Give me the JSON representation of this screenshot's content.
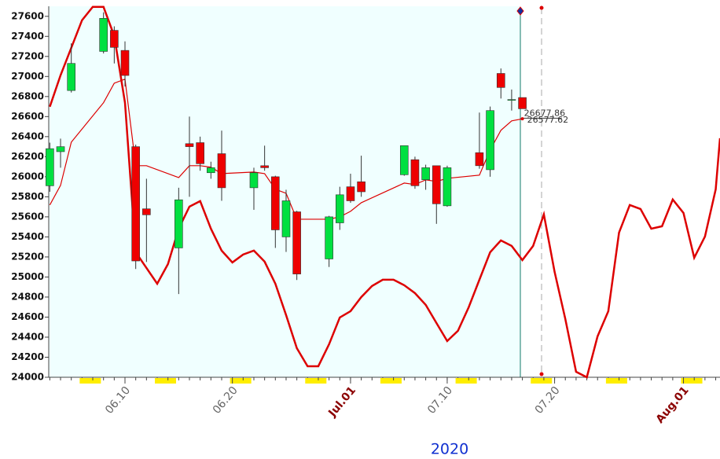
{
  "chart_data": {
    "type": "candlestick",
    "xlabel": "2020",
    "xlim": [
      2.9,
      65.4
    ],
    "ylim": [
      24000,
      27700
    ],
    "yticks": [
      24000,
      24200,
      24400,
      24600,
      24800,
      25000,
      25200,
      25400,
      25600,
      25800,
      26000,
      26200,
      26400,
      26600,
      26800,
      27000,
      27200,
      27400,
      27600
    ],
    "xticks": [
      {
        "value": 10,
        "label": "06.10"
      },
      {
        "value": 20,
        "label": "06.20"
      },
      {
        "value": 31,
        "label": "Jul.01"
      },
      {
        "value": 40,
        "label": "07.10"
      },
      {
        "value": 50,
        "label": "07.20"
      },
      {
        "value": 62,
        "label": "Aug.01"
      }
    ],
    "xtick_colors": [
      "#666666",
      "#666666",
      "#8b0000",
      "#666666",
      "#666666",
      "#8b0000"
    ],
    "up_color": "#00e040",
    "down_color": "#ee0000",
    "candles": {
      "x": [
        3,
        4,
        5,
        8,
        9,
        10,
        11,
        12,
        15,
        16,
        17,
        18,
        19,
        22,
        23,
        24,
        25,
        26,
        29,
        30,
        31,
        32,
        36,
        37,
        38,
        39,
        40,
        43,
        44,
        45,
        46,
        47
      ],
      "open": [
        25910,
        26250,
        26860,
        27250,
        27460,
        27260,
        26300,
        25680,
        25290,
        26330,
        26340,
        26040,
        26230,
        25890,
        26110,
        26000,
        25400,
        25650,
        25180,
        25540,
        25900,
        25950,
        26020,
        26170,
        25970,
        26110,
        25710,
        26240,
        26070,
        27030,
        26770,
        26790
      ],
      "high": [
        26340,
        26380,
        27330,
        27640,
        27500,
        27350,
        26320,
        25980,
        25890,
        26600,
        26400,
        26150,
        26460,
        26090,
        26310,
        26010,
        25870,
        25660,
        25610,
        25900,
        26030,
        26210,
        26310,
        26200,
        26120,
        26110,
        26110,
        26640,
        26700,
        27080,
        26870,
        26790
      ],
      "low": [
        25850,
        26090,
        26840,
        27230,
        27130,
        26900,
        25080,
        25150,
        24830,
        25800,
        26060,
        25980,
        25760,
        25670,
        26060,
        25290,
        25250,
        24970,
        25100,
        25470,
        25740,
        25800,
        26010,
        25880,
        25870,
        25530,
        25700,
        26080,
        26000,
        26780,
        26660,
        26680
      ],
      "close": [
        26280,
        26300,
        27130,
        27580,
        27290,
        27010,
        25160,
        25620,
        25770,
        26300,
        26130,
        26090,
        25890,
        26040,
        26090,
        25470,
        25760,
        25030,
        25600,
        25820,
        25760,
        25850,
        26310,
        25910,
        26090,
        25730,
        26090,
        26110,
        26660,
        26890,
        26770,
        26677.86
      ]
    },
    "lines": [
      {
        "color": "#dd0000",
        "width": 1.2,
        "x": [
          3,
          4,
          5,
          8,
          9,
          10,
          11,
          12,
          15,
          16,
          17,
          18,
          19,
          22,
          23,
          24,
          25,
          26,
          29,
          30,
          31,
          32,
          36,
          37,
          38,
          39,
          40,
          43,
          44,
          45,
          46,
          47
        ],
        "values": [
          25718,
          25914,
          26345,
          26738,
          26933,
          26973,
          26110,
          26110,
          25992,
          26110,
          26110,
          26095,
          26031,
          26047,
          26031,
          25875,
          25835,
          25576,
          25576,
          25600,
          25655,
          25741,
          25937,
          25922,
          25969,
          25953,
          25984,
          26016,
          26267,
          26463,
          26557,
          26577.62
        ]
      },
      {
        "color": "#dd0000",
        "width": 2.5,
        "x": [
          3,
          4,
          5,
          6,
          7,
          8,
          9,
          10,
          11,
          12,
          13,
          14,
          15,
          16,
          17,
          18,
          19,
          20,
          21,
          22,
          23,
          24,
          25,
          26,
          27,
          28,
          29,
          30,
          31,
          32,
          33,
          34,
          35,
          36,
          37,
          38,
          39,
          40,
          41,
          42,
          43,
          44,
          45,
          46,
          47,
          48,
          49,
          50,
          51,
          52,
          53,
          54,
          55,
          56,
          57,
          58,
          59,
          60,
          61,
          62,
          63,
          64,
          65,
          65.4
        ],
        "values": [
          26698,
          27012,
          27286,
          27561,
          27694,
          27694,
          27404,
          26738,
          25247,
          25090,
          24933,
          25129,
          25482,
          25702,
          25757,
          25482,
          25263,
          25145,
          25224,
          25263,
          25153,
          24933,
          24620,
          24290,
          24110,
          24110,
          24329,
          24596,
          24659,
          24800,
          24910,
          24973,
          24973,
          24918,
          24839,
          24722,
          24541,
          24361,
          24463,
          24698,
          24973,
          25247,
          25365,
          25310,
          25169,
          25310,
          25624,
          25051,
          24580,
          24055,
          24000,
          24408,
          24659,
          25443,
          25718,
          25678,
          25482,
          25506,
          25773,
          25639,
          25192,
          25404,
          25874,
          26384
        ]
      }
    ]
  }
}
